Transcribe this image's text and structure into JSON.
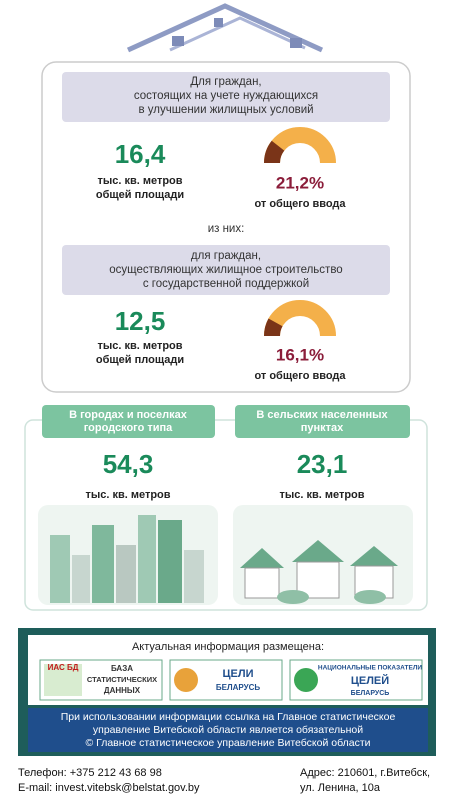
{
  "needy": {
    "heading": [
      "Для граждан,",
      "состоящих на учете нуждающихся",
      "в улучшении жилищных условий"
    ],
    "value": "16,4",
    "unit": [
      "тыс. кв. метров",
      "общей площади"
    ],
    "share": {
      "value": 21.2,
      "label": "21,2%"
    },
    "share_caption": "от общего ввода"
  },
  "of_which": "из них:",
  "supported": {
    "heading": [
      "для граждан,",
      "осуществляющих жилищное строительство",
      "с государственной поддержкой"
    ],
    "value": "12,5",
    "unit": [
      "тыс. кв. метров",
      "общей площади"
    ],
    "share": {
      "value": 16.1,
      "label": "16,1%"
    },
    "share_caption": "от общего ввода"
  },
  "areas": [
    {
      "tab": [
        "В городах и поселках",
        "городского типа"
      ],
      "value": "54,3",
      "unit": "тыс. кв. метров"
    },
    {
      "tab": [
        "В сельских населенных",
        "пунктах"
      ],
      "value": "23,1",
      "unit": "тыс. кв. метров"
    }
  ],
  "info": {
    "heading": "Актуальная информация размещена:",
    "logos": [
      [
        "ИАС БД",
        "БАЗА",
        "СТАТИСТИЧЕСКИХ",
        "ДАННЫХ"
      ],
      [
        "ЦЕЛИ",
        "БЕЛАРУСЬ"
      ],
      [
        "НАЦИОНАЛЬНЫЕ ПОКАЗАТЕЛИ",
        "ЦЕЛЕЙ",
        "БЕЛАРУСЬ"
      ]
    ],
    "notice": [
      "При использовании информации ссылка на Главное статистическое",
      "управление Витебской области является обязательной",
      "© Главное статистическое управление Витебской области"
    ]
  },
  "footer": {
    "phone": "Телефон: +375 212 43 68 98",
    "email": "E-mail: invest.vitebsk@belstat.gov.by",
    "address": [
      "Адрес: 210601, г.Витебск,",
      "ул. Ленина, 10а"
    ]
  }
}
